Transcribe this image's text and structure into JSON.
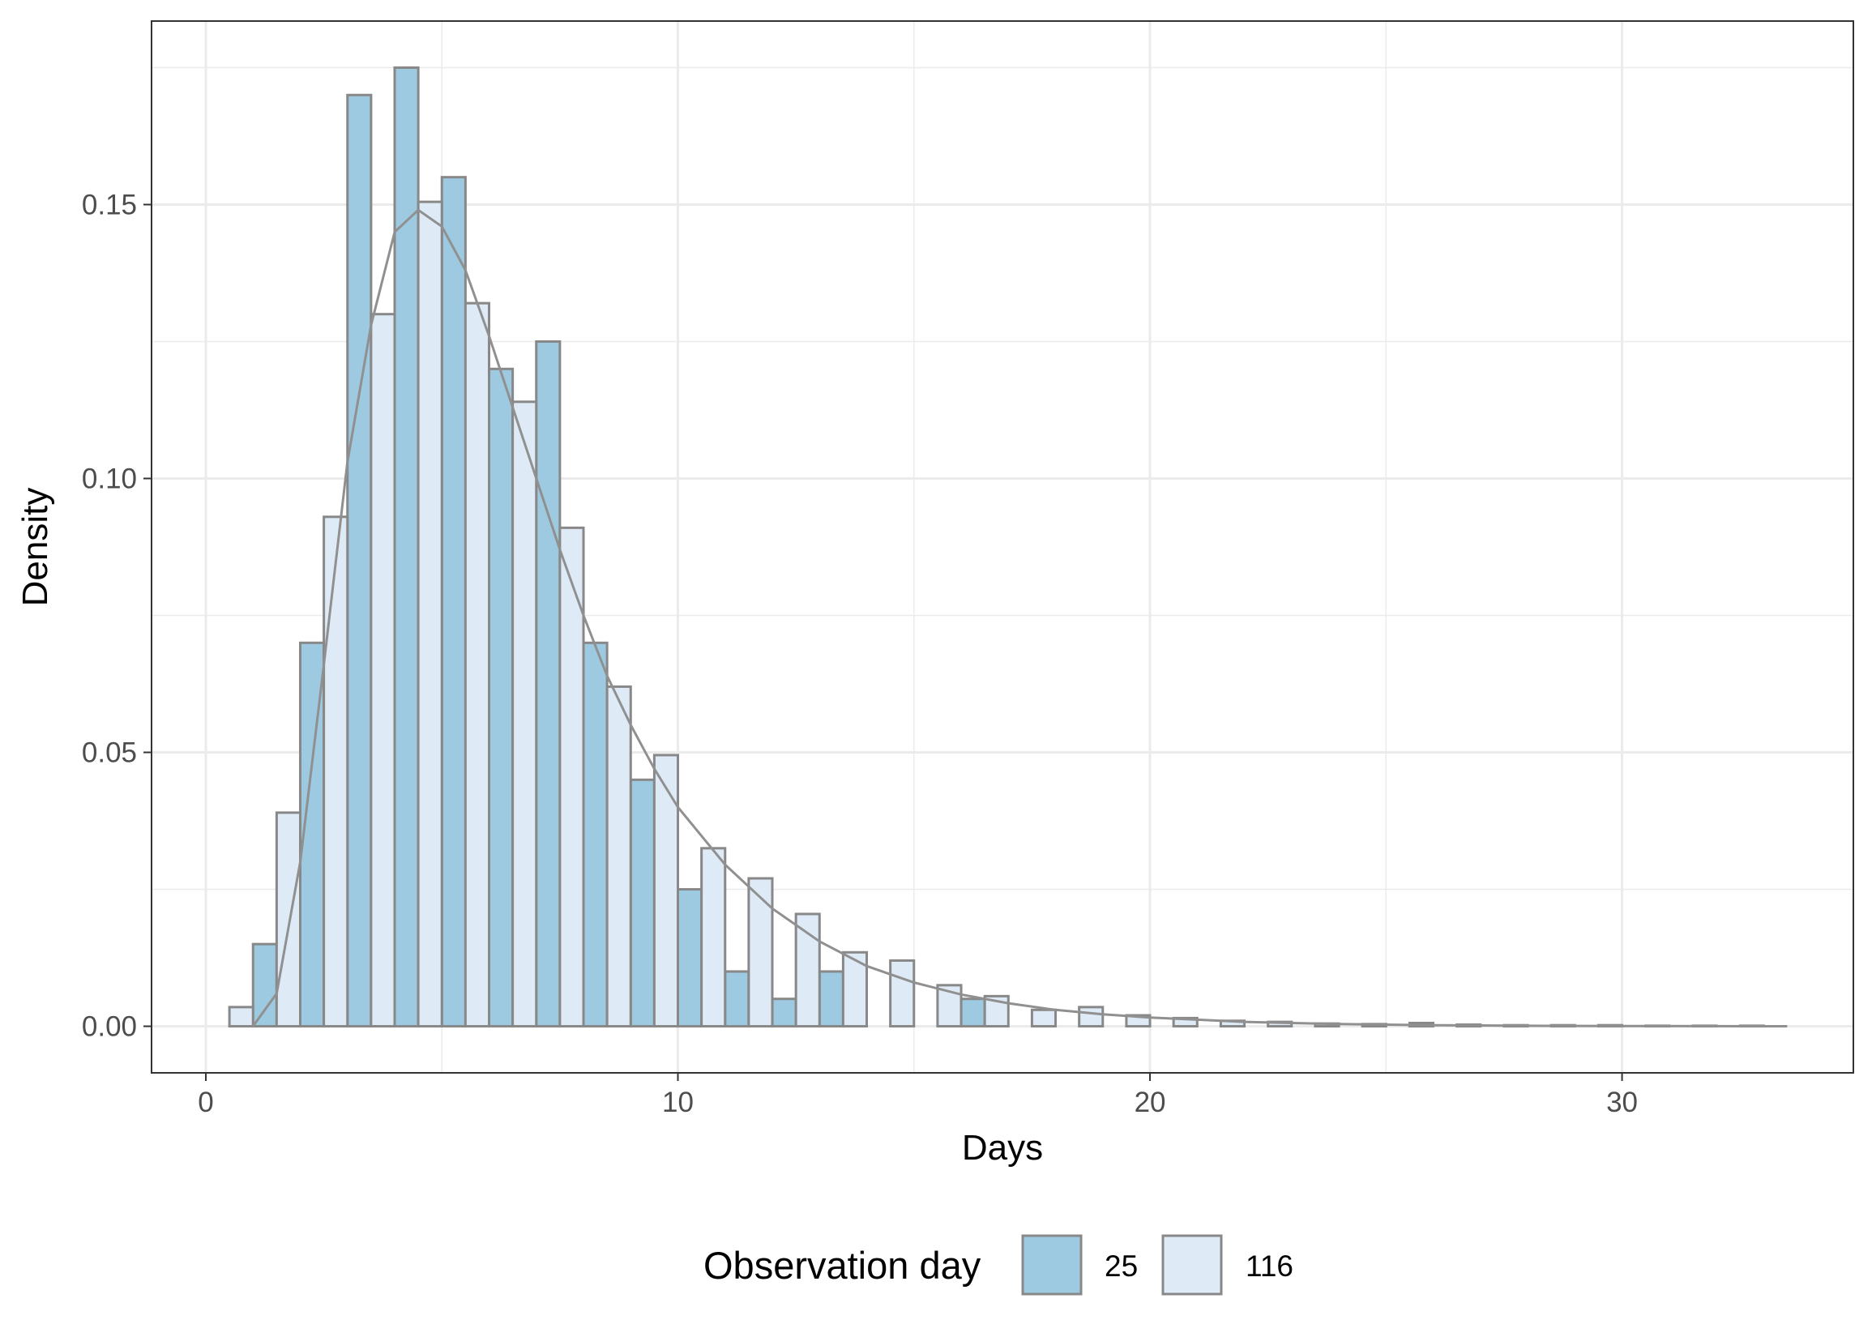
{
  "chart_data": {
    "type": "bar",
    "xlabel": "Days",
    "ylabel": "Density",
    "xlim": [
      -1.15,
      34.9
    ],
    "ylim": [
      -0.0085,
      0.1835
    ],
    "x_ticks": [
      0,
      10,
      20,
      30
    ],
    "x_tick_labels": [
      "0",
      "10",
      "20",
      "30"
    ],
    "y_ticks": [
      0.0,
      0.05,
      0.1,
      0.15
    ],
    "y_tick_labels": [
      "0.00",
      "0.05",
      "0.10",
      "0.15"
    ],
    "grid": true,
    "legend": {
      "title": "Observation day",
      "position": "bottom",
      "entries": [
        {
          "label": "25",
          "color": "#9ecae1"
        },
        {
          "label": "116",
          "color": "#deebf7"
        }
      ]
    },
    "bar_width": 0.5,
    "series": [
      {
        "name": "25",
        "color": "#9ecae1",
        "x": [
          1.25,
          2.25,
          3.25,
          4.25,
          5.25,
          6.25,
          7.25,
          8.25,
          9.25,
          10.25,
          11.25,
          12.25,
          13.25,
          16.25
        ],
        "values": [
          0.015,
          0.07,
          0.17,
          0.175,
          0.155,
          0.12,
          0.125,
          0.07,
          0.045,
          0.025,
          0.01,
          0.005,
          0.01,
          0.005
        ]
      },
      {
        "name": "116",
        "color": "#deebf7",
        "x": [
          0.75,
          1.75,
          2.75,
          3.75,
          4.75,
          5.75,
          6.75,
          7.75,
          8.75,
          9.75,
          10.75,
          11.75,
          12.75,
          13.75,
          14.75,
          15.75,
          16.75,
          17.75,
          18.75,
          19.75,
          20.75,
          21.75,
          22.75,
          23.75,
          24.75,
          25.75,
          26.75,
          27.75,
          28.75,
          29.75,
          30.75,
          31.75,
          32.75
        ],
        "values": [
          0.0035,
          0.039,
          0.093,
          0.13,
          0.1505,
          0.132,
          0.114,
          0.091,
          0.062,
          0.0495,
          0.0325,
          0.027,
          0.0205,
          0.0135,
          0.012,
          0.0075,
          0.0055,
          0.003,
          0.0035,
          0.002,
          0.0015,
          0.001,
          0.0008,
          0.0005,
          0.0004,
          0.0006,
          0.0003,
          0.0002,
          0.0002,
          0.0002,
          0.0001,
          0.0001,
          0.0001
        ]
      }
    ],
    "density_curve": {
      "color": "#909090",
      "x": [
        1.0,
        1.5,
        2.0,
        2.5,
        3.0,
        3.5,
        4.0,
        4.5,
        5.0,
        5.5,
        6.0,
        6.5,
        7.0,
        7.5,
        8.0,
        8.5,
        9.0,
        9.5,
        10.0,
        11.0,
        12.0,
        13.0,
        14.0,
        15.0,
        16.0,
        17.0,
        18.0,
        19.0,
        20.0,
        21.0,
        22.0,
        23.0,
        24.0,
        26.0,
        28.0,
        30.0,
        32.0,
        33.5
      ],
      "y": [
        0.0,
        0.006,
        0.03,
        0.066,
        0.103,
        0.128,
        0.145,
        0.149,
        0.146,
        0.138,
        0.126,
        0.113,
        0.1,
        0.087,
        0.075,
        0.064,
        0.055,
        0.047,
        0.04,
        0.0295,
        0.0215,
        0.0155,
        0.011,
        0.008,
        0.0058,
        0.0042,
        0.003,
        0.0022,
        0.0016,
        0.0012,
        0.0008,
        0.0006,
        0.0004,
        0.0002,
        0.0001,
        5e-05,
        2e-05,
        0.0
      ]
    }
  }
}
